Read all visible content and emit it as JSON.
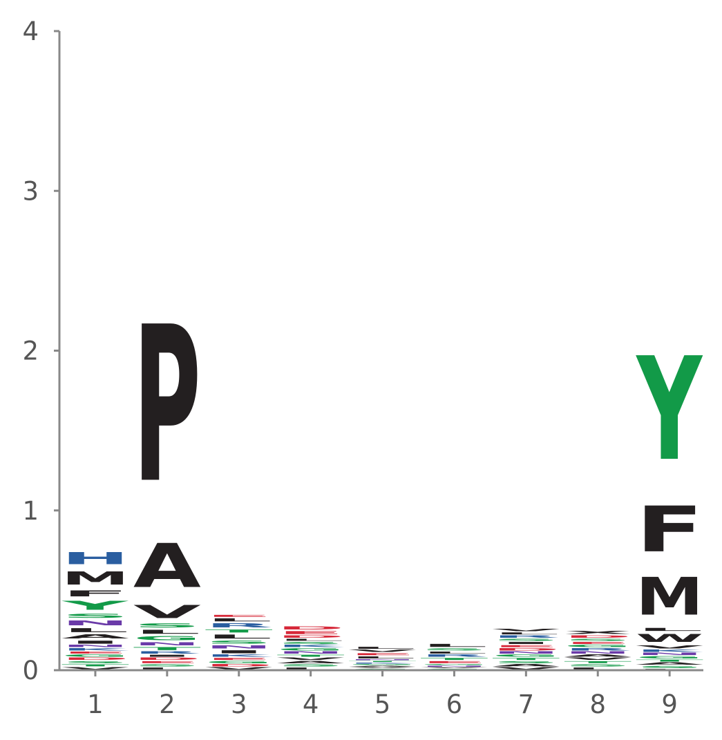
{
  "chart_data": {
    "type": "sequence-logo",
    "title": "",
    "xlabel": "",
    "ylabel": "",
    "ylim": [
      0,
      4
    ],
    "yticks": [
      0,
      1,
      2,
      3,
      4
    ],
    "positions": [
      1,
      2,
      3,
      4,
      5,
      6,
      7,
      8,
      9
    ],
    "colors": {
      "acidic": "#d62839",
      "basic": "#2a5ea0",
      "hydrophobic": "#231f20",
      "polar": "#129a48",
      "neutral": "#6a3aa8"
    },
    "residue_class": {
      "A": "hydrophobic",
      "C": "polar",
      "D": "acidic",
      "E": "acidic",
      "F": "hydrophobic",
      "G": "polar",
      "H": "basic",
      "I": "hydrophobic",
      "K": "basic",
      "L": "hydrophobic",
      "M": "hydrophobic",
      "N": "neutral",
      "P": "hydrophobic",
      "Q": "neutral",
      "R": "basic",
      "S": "polar",
      "T": "polar",
      "V": "hydrophobic",
      "W": "hydrophobic",
      "Y": "polar"
    },
    "stacks": [
      [
        [
          "V",
          0.02
        ],
        [
          "T",
          0.02
        ],
        [
          "S",
          0.02
        ],
        [
          "D",
          0.02
        ],
        [
          "G",
          0.02
        ],
        [
          "E",
          0.02
        ],
        [
          "K",
          0.02
        ],
        [
          "N",
          0.02
        ],
        [
          "I",
          0.03
        ],
        [
          "A",
          0.04
        ],
        [
          "L",
          0.04
        ],
        [
          "N",
          0.05
        ],
        [
          "S",
          0.04
        ],
        [
          "Y",
          0.09
        ],
        [
          "F",
          0.06
        ],
        [
          "M",
          0.13
        ],
        [
          "H",
          0.12
        ]
      ],
      [
        [
          "L",
          0.02
        ],
        [
          "S",
          0.02
        ],
        [
          "E",
          0.02
        ],
        [
          "D",
          0.02
        ],
        [
          "I",
          0.02
        ],
        [
          "R",
          0.02
        ],
        [
          "T",
          0.03
        ],
        [
          "N",
          0.03
        ],
        [
          "G",
          0.04
        ],
        [
          "L",
          0.04
        ],
        [
          "S",
          0.04
        ],
        [
          "V",
          0.13
        ],
        [
          "A",
          0.44
        ],
        [
          "P",
          1.57
        ]
      ],
      [
        [
          "V",
          0.02
        ],
        [
          "D",
          0.02
        ],
        [
          "G",
          0.02
        ],
        [
          "E",
          0.02
        ],
        [
          "K",
          0.02
        ],
        [
          "I",
          0.03
        ],
        [
          "N",
          0.03
        ],
        [
          "S",
          0.03
        ],
        [
          "L",
          0.04
        ],
        [
          "T",
          0.03
        ],
        [
          "R",
          0.04
        ],
        [
          "L",
          0.03
        ],
        [
          "E",
          0.02
        ]
      ],
      [
        [
          "L",
          0.02
        ],
        [
          "S",
          0.02
        ],
        [
          "A",
          0.02
        ],
        [
          "V",
          0.02
        ],
        [
          "T",
          0.02
        ],
        [
          "N",
          0.02
        ],
        [
          "G",
          0.02
        ],
        [
          "K",
          0.02
        ],
        [
          "S",
          0.02
        ],
        [
          "L",
          0.02
        ],
        [
          "D",
          0.02
        ],
        [
          "E",
          0.03
        ],
        [
          "D",
          0.03
        ]
      ],
      [
        [
          "S",
          0.01
        ],
        [
          "V",
          0.01
        ],
        [
          "A",
          0.01
        ],
        [
          "G",
          0.01
        ],
        [
          "K",
          0.01
        ],
        [
          "T",
          0.01
        ],
        [
          "N",
          0.01
        ],
        [
          "L",
          0.02
        ],
        [
          "E",
          0.02
        ],
        [
          "V",
          0.02
        ],
        [
          "L",
          0.02
        ]
      ],
      [
        [
          "S",
          0.01
        ],
        [
          "V",
          0.01
        ],
        [
          "N",
          0.01
        ],
        [
          "G",
          0.01
        ],
        [
          "E",
          0.02
        ],
        [
          "T",
          0.02
        ],
        [
          "R",
          0.02
        ],
        [
          "L",
          0.02
        ],
        [
          "S",
          0.02
        ],
        [
          "L",
          0.03
        ]
      ],
      [
        [
          "V",
          0.02
        ],
        [
          "A",
          0.02
        ],
        [
          "S",
          0.02
        ],
        [
          "T",
          0.02
        ],
        [
          "G",
          0.02
        ],
        [
          "N",
          0.02
        ],
        [
          "D",
          0.02
        ],
        [
          "E",
          0.02
        ],
        [
          "I",
          0.02
        ],
        [
          "S",
          0.02
        ],
        [
          "R",
          0.02
        ],
        [
          "L",
          0.02
        ],
        [
          "V",
          0.02
        ]
      ],
      [
        [
          "L",
          0.02
        ],
        [
          "S",
          0.02
        ],
        [
          "T",
          0.02
        ],
        [
          "V",
          0.02
        ],
        [
          "A",
          0.02
        ],
        [
          "N",
          0.02
        ],
        [
          "R",
          0.02
        ],
        [
          "G",
          0.02
        ],
        [
          "E",
          0.02
        ],
        [
          "S",
          0.02
        ],
        [
          "D",
          0.02
        ],
        [
          "X",
          0.03
        ]
      ],
      [
        [
          "L",
          0.01
        ],
        [
          "S",
          0.02
        ],
        [
          "A",
          0.02
        ],
        [
          "T",
          0.02
        ],
        [
          "G",
          0.02
        ],
        [
          "N",
          0.02
        ],
        [
          "K",
          0.02
        ],
        [
          "V",
          0.03
        ],
        [
          "W",
          0.08
        ],
        [
          "L",
          0.03
        ],
        [
          "M",
          0.38
        ],
        [
          "F",
          0.46
        ],
        [
          "Y",
          1.04
        ]
      ]
    ]
  }
}
